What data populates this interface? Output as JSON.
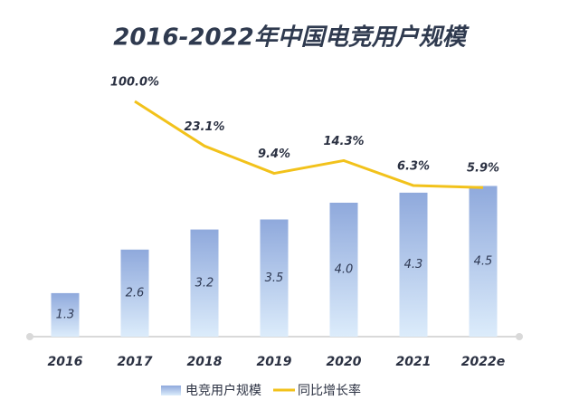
{
  "chart_data": {
    "type": "bar-line",
    "title": "2016-2022年中国电竞用户规模",
    "categories": [
      "2016",
      "2017",
      "2018",
      "2019",
      "2020",
      "2021",
      "2022e"
    ],
    "series": [
      {
        "name": "电竞用户规模",
        "type": "bar",
        "color": "#8fa9dc",
        "values": [
          1.3,
          2.6,
          3.2,
          3.5,
          4.0,
          4.3,
          4.5
        ],
        "value_labels": [
          "1.3",
          "2.6",
          "3.2",
          "3.5",
          "4.0",
          "4.3",
          "4.5"
        ]
      },
      {
        "name": "同比增长率",
        "type": "line",
        "axis": "y2",
        "color": "#f2c21b",
        "values": [
          null,
          100.0,
          23.1,
          9.4,
          14.3,
          6.3,
          5.9
        ],
        "value_labels": [
          null,
          "100.0%",
          "23.1%",
          "9.4%",
          "14.3%",
          "6.3%",
          "5.9%"
        ]
      }
    ],
    "ylim": [
      0,
      6
    ],
    "y2lim": [
      3,
      100
    ],
    "y2log": true
  }
}
